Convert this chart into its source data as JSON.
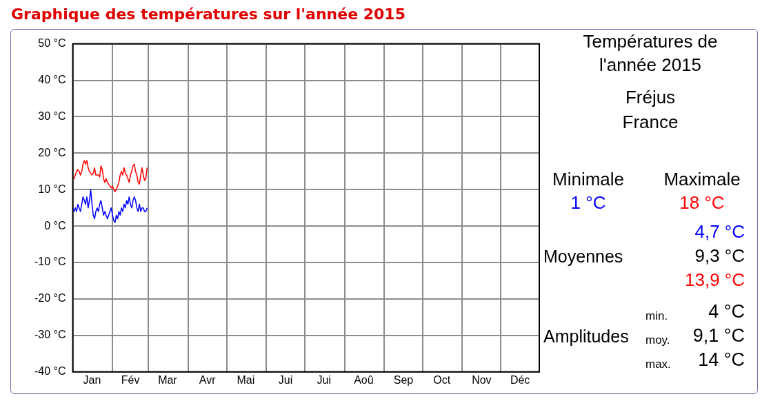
{
  "chart_data": {
    "type": "line",
    "title": "Graphique des températures sur l'année 2015",
    "x": [
      "--01-01",
      "--01-02",
      "--01-03",
      "--01-04",
      "--01-05",
      "--01-06",
      "--01-07",
      "--01-08",
      "--01-09",
      "--01-10",
      "--01-11",
      "--01-12",
      "--01-13",
      "--01-14",
      "--01-15",
      "--01-16",
      "--01-17",
      "--01-18",
      "--01-19",
      "--01-20",
      "--01-21",
      "--01-22",
      "--01-23",
      "--01-24",
      "--01-25",
      "--01-26",
      "--01-27",
      "--01-28",
      "--01-29",
      "--01-30",
      "--01-31",
      "--02-01",
      "--02-02",
      "--02-03",
      "--02-04",
      "--02-05",
      "--02-06",
      "--02-07",
      "--02-08",
      "--02-09",
      "--02-10",
      "--02-11",
      "--02-12",
      "--02-13",
      "--02-14",
      "--02-15",
      "--02-16",
      "--02-17",
      "--02-18",
      "--02-19",
      "--02-20",
      "--02-21",
      "--02-22",
      "--02-23",
      "--02-24",
      "--02-25",
      "--02-26",
      "--02-27",
      "--02-28"
    ],
    "series": [
      {
        "color": "#ff0000",
        "values": [
          13,
          13,
          14,
          15,
          15.5,
          15,
          14,
          15,
          17,
          18,
          17,
          18,
          16,
          15,
          14.5,
          14,
          14.5,
          16,
          14,
          14,
          14,
          13.5,
          16.5,
          15.5,
          13,
          12,
          13,
          12,
          11.5,
          11,
          10.5,
          11,
          10,
          9.5,
          10,
          11,
          12,
          14,
          15,
          14,
          16,
          14.5,
          14,
          13,
          12,
          14,
          15,
          16.5,
          17,
          15,
          14,
          12,
          11.5,
          14,
          16,
          14,
          12.5,
          13,
          16
        ]
      },
      {
        "color": "#0000ff",
        "values": [
          5,
          4,
          5,
          4,
          6,
          5,
          4,
          6,
          8,
          7,
          6,
          8,
          5,
          7,
          10,
          6,
          3,
          2,
          4,
          5,
          4,
          6,
          7,
          5,
          3,
          4,
          3,
          2,
          3,
          4,
          5,
          3,
          1.5,
          1,
          3,
          2,
          4,
          3,
          5,
          4,
          6,
          5,
          7,
          6,
          8,
          6,
          5,
          7,
          8,
          7,
          5,
          4,
          6,
          4,
          5,
          5,
          4,
          4,
          5
        ]
      }
    ],
    "xlim": [
      "--01-01",
      "--12-31"
    ],
    "xticks": [
      {
        "value": "--01-01",
        "label": null
      },
      {
        "value": "--01-16",
        "label": "Jan"
      },
      {
        "value": "--02-01",
        "label": null
      },
      {
        "value": "--02-15",
        "label": "Fév"
      },
      {
        "value": "--03-01",
        "label": null
      },
      {
        "value": "--03-16",
        "label": "Mar"
      },
      {
        "value": "--04-01",
        "label": null
      },
      {
        "value": "--04-16",
        "label": "Avr"
      },
      {
        "value": "--05-01",
        "label": null
      },
      {
        "value": "--05-16",
        "label": "Mai"
      },
      {
        "value": "--06-01",
        "label": null
      },
      {
        "value": "--06-16",
        "label": "Jui"
      },
      {
        "value": "--07-01",
        "label": null
      },
      {
        "value": "--07-16",
        "label": "Jui"
      },
      {
        "value": "--08-01",
        "label": null
      },
      {
        "value": "--08-16",
        "label": "Aoû"
      },
      {
        "value": "--09-01",
        "label": null
      },
      {
        "value": "--09-16",
        "label": "Sep"
      },
      {
        "value": "--10-01",
        "label": null
      },
      {
        "value": "--10-16",
        "label": "Oct"
      },
      {
        "value": "--11-01",
        "label": null
      },
      {
        "value": "--11-16",
        "label": "Nov"
      },
      {
        "value": "--12-01",
        "label": null
      },
      {
        "value": "--12-16",
        "label": "Déc"
      },
      {
        "value": "--12-31",
        "label": null
      }
    ],
    "ylim": [
      -40,
      50
    ],
    "yticks": [
      {
        "value": -40,
        "label": "-40 °C"
      },
      {
        "value": -30,
        "label": "-30 °C"
      },
      {
        "value": -20,
        "label": "-20 °C"
      },
      {
        "value": -10,
        "label": "-10 °C"
      },
      {
        "value": 0,
        "label": "0 °C"
      },
      {
        "value": 10,
        "label": "10 °C"
      },
      {
        "value": 20,
        "label": "20 °C"
      },
      {
        "value": 30,
        "label": "30 °C"
      },
      {
        "value": 40,
        "label": "40 °C"
      },
      {
        "value": 50,
        "label": "50 °C"
      }
    ],
    "grid": true,
    "legend": false,
    "marker": "none",
    "line_style": "solid",
    "annotations": [
      "Températures de l'année 2015",
      "Fréjus",
      "France",
      "Minimale",
      "Maximale",
      "1 °C",
      "18 °C",
      "4,7 °C",
      "Moyennes",
      "9,3 °C",
      "13,9 °C",
      "min.",
      "4 °C",
      "Amplitudes",
      "moy.",
      "9,1 °C",
      "max.",
      "14 °C"
    ]
  }
}
